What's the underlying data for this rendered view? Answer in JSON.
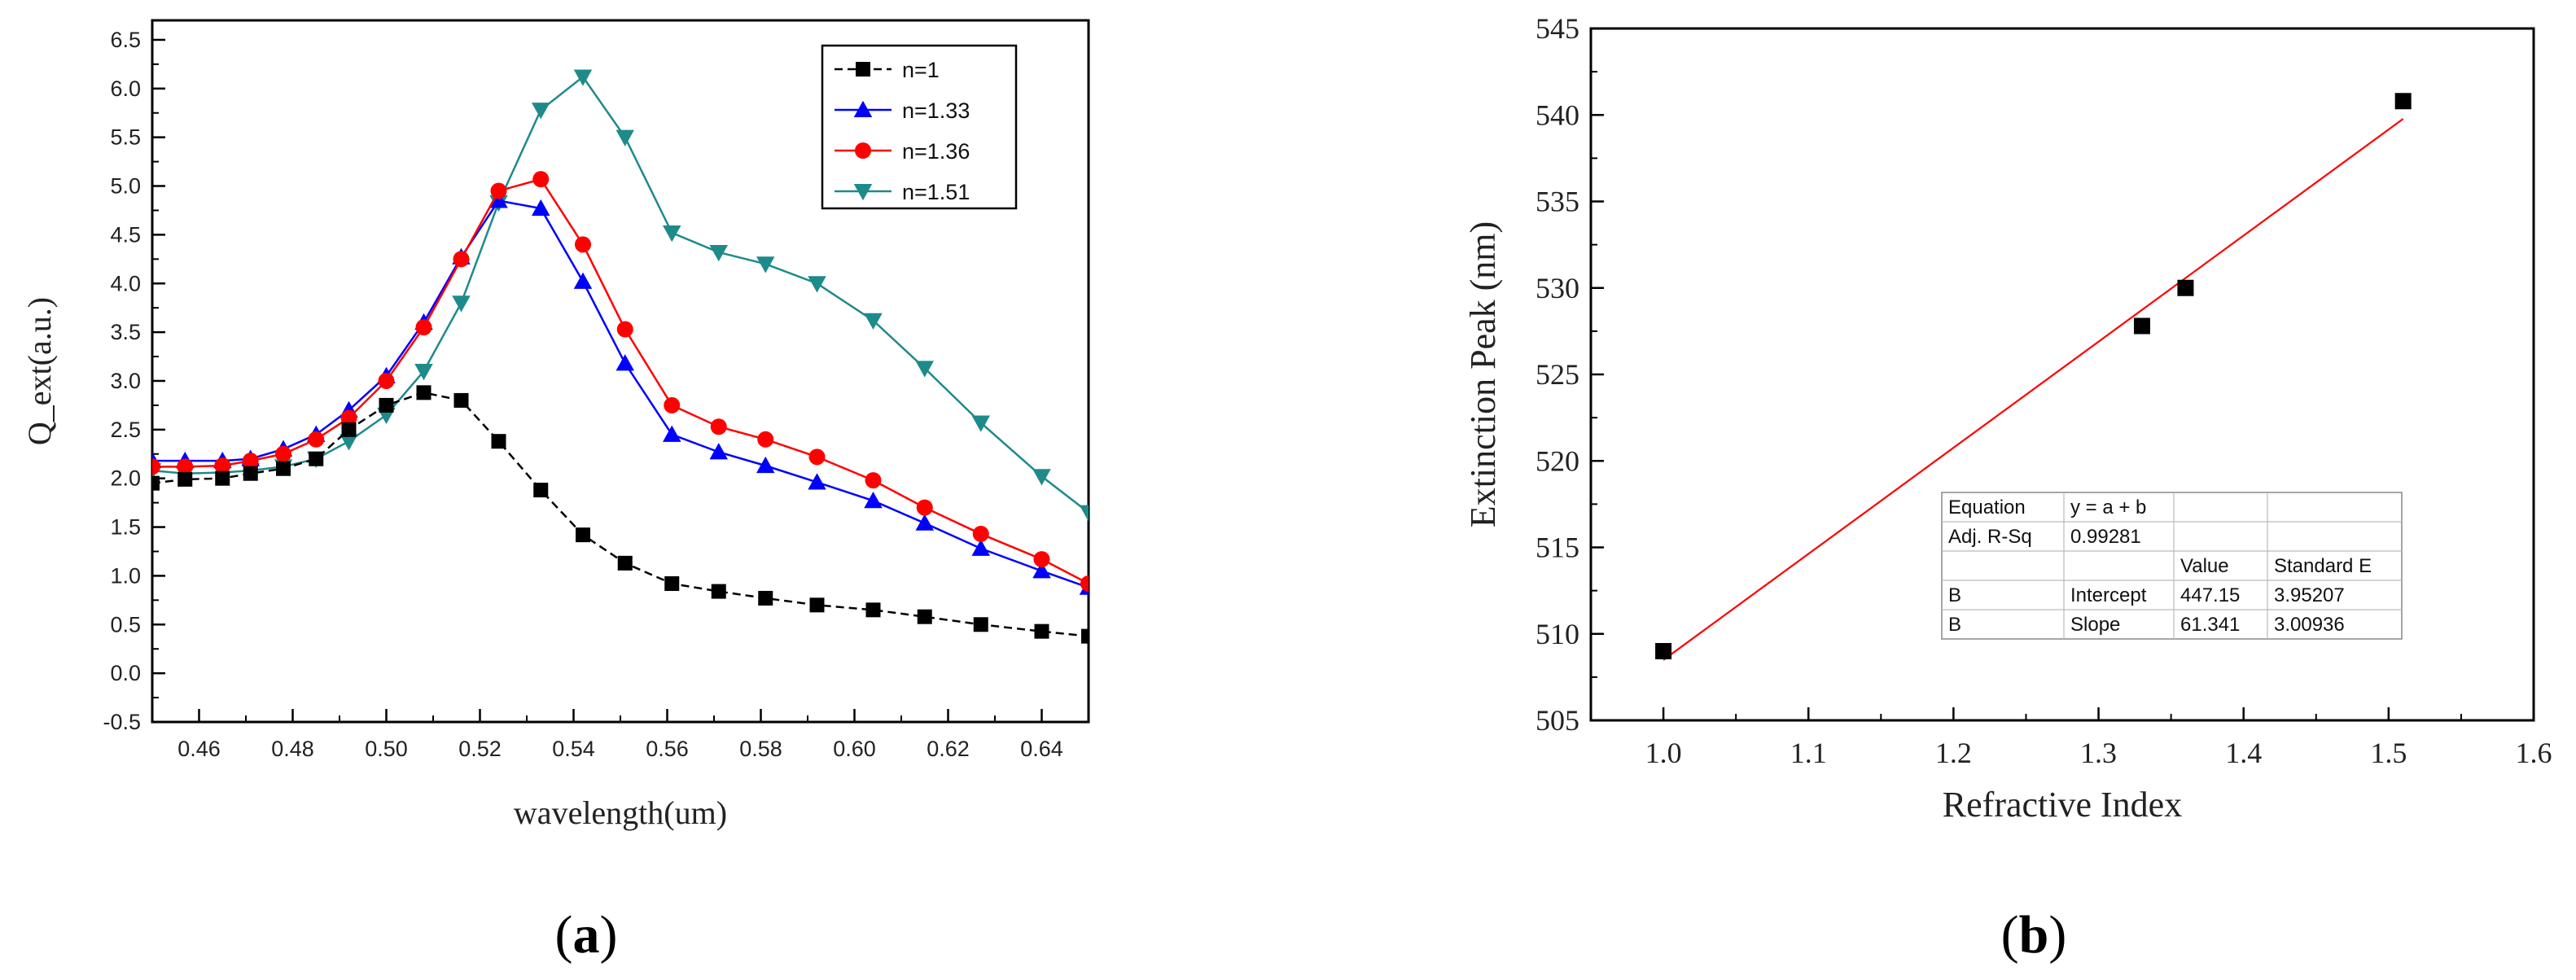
{
  "chart_data": [
    {
      "type": "line",
      "panel_label": "(a)",
      "panel_letter": "a",
      "xlabel": "wavelength(um)",
      "ylabel": "Q_ext(a.u.)",
      "xlim": [
        0.45,
        0.65
      ],
      "ylim": [
        -0.5,
        6.7
      ],
      "xticks": [
        0.46,
        0.48,
        0.5,
        0.52,
        0.54,
        0.56,
        0.58,
        0.6,
        0.62,
        0.64
      ],
      "xtick_labels": [
        "0.46",
        "0.48",
        "0.50",
        "0.52",
        "0.54",
        "0.56",
        "0.58",
        "0.60",
        "0.62",
        "0.64"
      ],
      "yticks": [
        -0.5,
        0.0,
        0.5,
        1.0,
        1.5,
        2.0,
        2.5,
        3.0,
        3.5,
        4.0,
        4.5,
        5.0,
        5.5,
        6.0,
        6.5
      ],
      "ytick_labels": [
        "-0.5",
        "0.0",
        "0.5",
        "1.0",
        "1.5",
        "2.0",
        "2.5",
        "3.0",
        "3.5",
        "4.0",
        "4.5",
        "5.0",
        "5.5",
        "6.0",
        "6.5"
      ],
      "legend_position": "top-right",
      "series": [
        {
          "name": "n=1",
          "color": "#000000",
          "marker": "square",
          "dash": true,
          "x": [
            0.45,
            0.457,
            0.465,
            0.471,
            0.478,
            0.485,
            0.492,
            0.5,
            0.508,
            0.516,
            0.524,
            0.533,
            0.542,
            0.551,
            0.561,
            0.571,
            0.581,
            0.592,
            0.604,
            0.615,
            0.627,
            0.64,
            0.65
          ],
          "y": [
            1.95,
            1.99,
            2.0,
            2.05,
            2.1,
            2.2,
            2.5,
            2.75,
            2.88,
            2.8,
            2.38,
            1.88,
            1.42,
            1.13,
            0.92,
            0.84,
            0.77,
            0.7,
            0.65,
            0.58,
            0.5,
            0.43,
            0.38
          ]
        },
        {
          "name": "n=1.33",
          "color": "#0000ff",
          "marker": "triangle-up",
          "dash": false,
          "x": [
            0.45,
            0.457,
            0.465,
            0.471,
            0.478,
            0.485,
            0.492,
            0.5,
            0.508,
            0.516,
            0.524,
            0.533,
            0.542,
            0.551,
            0.561,
            0.571,
            0.581,
            0.592,
            0.604,
            0.615,
            0.627,
            0.64,
            0.65
          ],
          "y": [
            2.18,
            2.18,
            2.18,
            2.2,
            2.3,
            2.45,
            2.7,
            3.05,
            3.6,
            4.27,
            4.85,
            4.77,
            4.02,
            3.18,
            2.45,
            2.27,
            2.13,
            1.96,
            1.77,
            1.54,
            1.28,
            1.05,
            0.88
          ]
        },
        {
          "name": "n=1.36",
          "color": "#ff0000",
          "marker": "circle",
          "dash": false,
          "x": [
            0.45,
            0.457,
            0.465,
            0.471,
            0.478,
            0.485,
            0.492,
            0.5,
            0.508,
            0.516,
            0.524,
            0.533,
            0.542,
            0.551,
            0.561,
            0.571,
            0.581,
            0.592,
            0.604,
            0.615,
            0.627,
            0.64,
            0.65
          ],
          "y": [
            2.12,
            2.12,
            2.13,
            2.18,
            2.25,
            2.4,
            2.62,
            3.0,
            3.55,
            4.25,
            4.95,
            5.07,
            4.4,
            3.53,
            2.75,
            2.53,
            2.4,
            2.22,
            1.98,
            1.7,
            1.43,
            1.17,
            0.92
          ]
        },
        {
          "name": "n=1.51",
          "color": "#1f8a8a",
          "marker": "triangle-down",
          "dash": false,
          "x": [
            0.45,
            0.457,
            0.465,
            0.471,
            0.478,
            0.485,
            0.492,
            0.5,
            0.508,
            0.516,
            0.524,
            0.533,
            0.542,
            0.551,
            0.561,
            0.571,
            0.581,
            0.592,
            0.604,
            0.615,
            0.627,
            0.64,
            0.65
          ],
          "y": [
            2.08,
            2.05,
            2.06,
            2.08,
            2.12,
            2.2,
            2.38,
            2.65,
            3.1,
            3.8,
            4.83,
            5.78,
            6.12,
            5.5,
            4.52,
            4.32,
            4.2,
            4.0,
            3.62,
            3.13,
            2.57,
            2.02,
            1.65
          ]
        }
      ]
    },
    {
      "type": "scatter",
      "panel_label": "(b)",
      "panel_letter": "b",
      "xlabel": "Refractive Index",
      "ylabel": "Extinction Peak (nm)",
      "xlim": [
        0.95,
        1.6
      ],
      "ylim": [
        505,
        545
      ],
      "xticks": [
        1.0,
        1.1,
        1.2,
        1.3,
        1.4,
        1.5,
        1.6
      ],
      "xtick_labels": [
        "1.0",
        "1.1",
        "1.2",
        "1.3",
        "1.4",
        "1.5",
        "1.6"
      ],
      "yticks": [
        505,
        510,
        515,
        520,
        525,
        530,
        535,
        540,
        545
      ],
      "ytick_labels": [
        "505",
        "510",
        "515",
        "520",
        "525",
        "530",
        "535",
        "540",
        "545"
      ],
      "points": {
        "x": [
          1.0,
          1.33,
          1.36,
          1.51
        ],
        "y": [
          509,
          527.8,
          530,
          540.8
        ],
        "color": "#000000"
      },
      "fit": {
        "intercept": 447.15,
        "slope": 61.341,
        "x_range": [
          1.0,
          1.51
        ],
        "color": "#ff0000"
      },
      "fit_table": [
        [
          "Equation",
          "y = a + b",
          "",
          ""
        ],
        [
          "Adj. R-Sq",
          "0.99281",
          "",
          ""
        ],
        [
          "",
          "",
          "Value",
          "Standard E"
        ],
        [
          "B",
          "Intercept",
          "447.15",
          "3.95207"
        ],
        [
          "B",
          "Slope",
          "61.341",
          "3.00936"
        ]
      ]
    }
  ]
}
